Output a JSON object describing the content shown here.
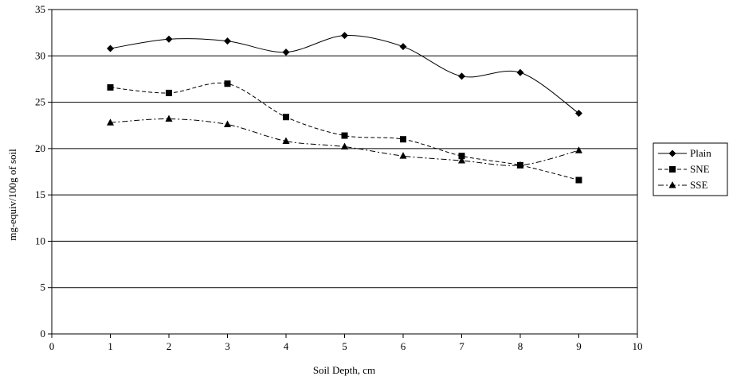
{
  "chart_data": {
    "type": "line",
    "title": "",
    "xlabel": "Soil Depth, cm",
    "ylabel": "mg-equiv/100g of soil",
    "xlim": [
      0,
      10
    ],
    "ylim": [
      0,
      35
    ],
    "x_ticks": [
      0,
      1,
      2,
      3,
      4,
      5,
      6,
      7,
      8,
      9,
      10
    ],
    "y_ticks": [
      0,
      5,
      10,
      15,
      20,
      25,
      30,
      35
    ],
    "grid": "horizontal",
    "legend_position": "right",
    "x": [
      1,
      2,
      3,
      4,
      5,
      6,
      7,
      8,
      9
    ],
    "series": [
      {
        "name": "Plain",
        "marker": "diamond",
        "line_style": "solid",
        "smooth": true,
        "values": [
          30.8,
          31.8,
          31.6,
          30.4,
          32.2,
          31.0,
          27.8,
          28.2,
          23.8
        ]
      },
      {
        "name": "SNE",
        "marker": "square",
        "line_style": "dashed",
        "smooth": true,
        "values": [
          26.6,
          26.0,
          27.0,
          23.4,
          21.4,
          21.0,
          19.2,
          18.2,
          16.6
        ]
      },
      {
        "name": "SSE",
        "marker": "triangle",
        "line_style": "dash-dot",
        "smooth": true,
        "values": [
          22.8,
          23.2,
          22.6,
          20.8,
          20.2,
          19.2,
          18.7,
          18.2,
          19.8
        ]
      }
    ]
  }
}
